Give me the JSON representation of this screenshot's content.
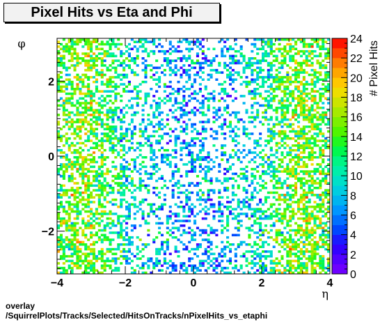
{
  "footer": {
    "line1": "overlay",
    "line2": "/SquirrelPlots/Tracks/Selected/HitsOnTracks/nPixelHits_vs_etaphi"
  },
  "chart_data": {
    "type": "heatmap",
    "title": "Pixel Hits vs Eta and Phi",
    "xlabel": "η",
    "ylabel": "φ",
    "zlabel": "# Pixel Hits",
    "xlim": [
      -4,
      4
    ],
    "ylim": [
      -3.14,
      3.14
    ],
    "zlim": [
      0,
      24
    ],
    "x_ticks": [
      "−4",
      "−2",
      "0",
      "2",
      "4"
    ],
    "x_tick_values": [
      -4,
      -2,
      0,
      2,
      4
    ],
    "y_ticks": [
      "−2",
      "0",
      "2"
    ],
    "y_tick_values": [
      -2,
      0,
      2
    ],
    "z_ticks": [
      "0",
      "2",
      "4",
      "6",
      "8",
      "10",
      "12",
      "14",
      "16",
      "18",
      "20",
      "22",
      "24"
    ],
    "z_tick_values": [
      0,
      2,
      4,
      6,
      8,
      10,
      12,
      14,
      16,
      18,
      20,
      22,
      24
    ],
    "x_bins": 100,
    "y_bins": 100,
    "density_profile": {
      "eta": [
        -4,
        -3.5,
        -3,
        -2.5,
        -2,
        -1.5,
        -1,
        -0.5,
        0,
        0.5,
        1,
        1.5,
        2,
        2.5,
        3,
        3.5,
        4
      ],
      "typical_hits": [
        13,
        15,
        15,
        13,
        10,
        9,
        8,
        7,
        7,
        7,
        8,
        9,
        10,
        13,
        15,
        15,
        13
      ],
      "fill_fraction": [
        0.45,
        0.62,
        0.58,
        0.48,
        0.36,
        0.32,
        0.3,
        0.34,
        0.36,
        0.34,
        0.3,
        0.32,
        0.36,
        0.48,
        0.58,
        0.62,
        0.45
      ]
    },
    "palette": [
      "#6d00ff",
      "#5200ff",
      "#3300ff",
      "#1a1aff",
      "#0047ff",
      "#0070ff",
      "#0096ff",
      "#00b4f0",
      "#00cde0",
      "#00e0c8",
      "#00eeaa",
      "#00f585",
      "#00f850",
      "#20f820",
      "#50f500",
      "#7cf000",
      "#a6ea00",
      "#cce400",
      "#eede00",
      "#ffc800",
      "#ffa600",
      "#ff7c00",
      "#ff4800",
      "#ff1400"
    ],
    "legend": "right"
  }
}
